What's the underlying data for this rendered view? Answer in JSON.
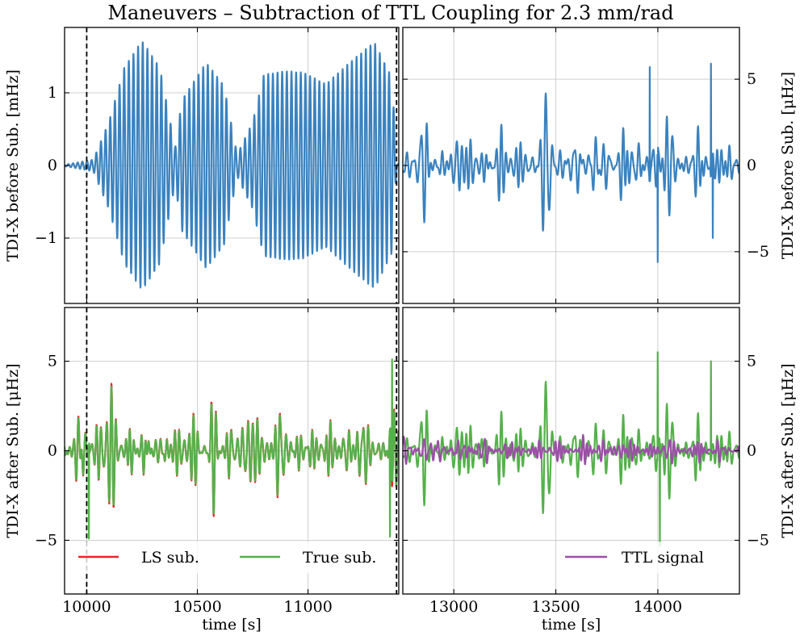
{
  "title": "Maneuvers – Subtraction of TTL Coupling for 2.3 mm/rad",
  "chart_data": [
    {
      "panel": "top-left",
      "type": "line",
      "ylabel": "TDI-X before Sub. [mHz]",
      "xlabel": "",
      "xlim": [
        9900,
        11410
      ],
      "ylim": [
        -1.9,
        1.9
      ],
      "yticks": [
        -1,
        0,
        1
      ],
      "ytick_labels": [
        "−1",
        "0",
        "1"
      ],
      "xticks": [
        10000,
        10500,
        11000
      ],
      "maneuver_boundaries": [
        10000,
        11400
      ],
      "series": [
        {
          "name": "TDI-X before subtraction",
          "color": "#3a82bf",
          "kind": "maneuver",
          "period_s": 21,
          "envelope": [
            [
              9900,
              0.01
            ],
            [
              10030,
              0.08
            ],
            [
              10100,
              0.6
            ],
            [
              10170,
              1.35
            ],
            [
              10250,
              1.72
            ],
            [
              10330,
              1.35
            ],
            [
              10400,
              0.25
            ],
            [
              10430,
              0.9
            ],
            [
              10540,
              1.42
            ],
            [
              10620,
              1.1
            ],
            [
              10680,
              0.15
            ],
            [
              10750,
              0.6
            ],
            [
              10800,
              1.25
            ],
            [
              10900,
              1.3
            ],
            [
              10980,
              1.28
            ],
            [
              11080,
              1.12
            ],
            [
              11200,
              1.45
            ],
            [
              11300,
              1.7
            ],
            [
              11380,
              1.2
            ],
            [
              11400,
              0.05
            ],
            [
              11410,
              0.01
            ]
          ]
        }
      ]
    },
    {
      "panel": "top-right",
      "type": "line",
      "ylabel": "TDI-X before Sub. [μHz]",
      "xlabel": "",
      "xlim": [
        12750,
        14400
      ],
      "ylim": [
        -8,
        8
      ],
      "yticks": [
        -5,
        0,
        5
      ],
      "ytick_labels": [
        "−5",
        "0",
        "5"
      ],
      "xticks": [
        13000,
        13500,
        14000
      ],
      "series": [
        {
          "name": "TDI-X before subtraction",
          "color": "#3a82bf",
          "kind": "noise",
          "amplitude": 2.6,
          "seed": 7,
          "peaks": [
            [
              13960,
              5.7
            ],
            [
              14000,
              -5.6
            ],
            [
              14260,
              5.9
            ],
            [
              14270,
              -4.2
            ]
          ]
        }
      ]
    },
    {
      "panel": "bottom-left",
      "type": "line",
      "ylabel": "TDI-X after Sub. [μHz]",
      "xlabel": "time [s]",
      "xlim": [
        9900,
        11410
      ],
      "ylim": [
        -8,
        8
      ],
      "yticks": [
        -5,
        0,
        5
      ],
      "ytick_labels": [
        "−5",
        "0",
        "5"
      ],
      "xticks": [
        10000,
        10500,
        11000
      ],
      "xtick_labels": [
        "10000",
        "10500",
        "11000"
      ],
      "maneuver_boundaries": [
        10000,
        11400
      ],
      "series": [
        {
          "name": "LS sub.",
          "color": "#e8262a",
          "kind": "noise",
          "amplitude": 2.4,
          "seed": 21,
          "offset_of": "True sub.",
          "offset_scale": 0.12
        },
        {
          "name": "True sub.",
          "color": "#55b14b",
          "kind": "noise",
          "amplitude": 2.3,
          "seed": 21,
          "peaks": [
            [
              11380,
              5.1
            ],
            [
              11370,
              -4.8
            ],
            [
              10010,
              -4.9
            ]
          ]
        }
      ],
      "legend": [
        {
          "label": "LS sub.",
          "color": "#e8262a"
        },
        {
          "label": "True sub.",
          "color": "#55b14b"
        }
      ]
    },
    {
      "panel": "bottom-right",
      "type": "line",
      "ylabel": "TDI-X after Sub. [μHz]",
      "xlabel": "time [s]",
      "xlim": [
        12750,
        14400
      ],
      "ylim": [
        -8,
        8
      ],
      "yticks": [
        -5,
        0,
        5
      ],
      "ytick_labels": [
        "−5",
        "0",
        "5"
      ],
      "xticks": [
        13000,
        13500,
        14000
      ],
      "xtick_labels": [
        "13000",
        "13500",
        "14000"
      ],
      "series": [
        {
          "name": "True sub.",
          "color": "#55b14b",
          "kind": "noise",
          "amplitude": 2.4,
          "seed": 7,
          "peaks": [
            [
              14000,
              5.5
            ],
            [
              14010,
              -5.3
            ],
            [
              14260,
              5.0
            ]
          ]
        },
        {
          "name": "TTL signal",
          "color": "#9c4fa8",
          "kind": "noise",
          "amplitude": 0.9,
          "seed": 33
        }
      ],
      "legend": [
        {
          "label": "TTL signal",
          "color": "#9c4fa8"
        }
      ]
    }
  ]
}
